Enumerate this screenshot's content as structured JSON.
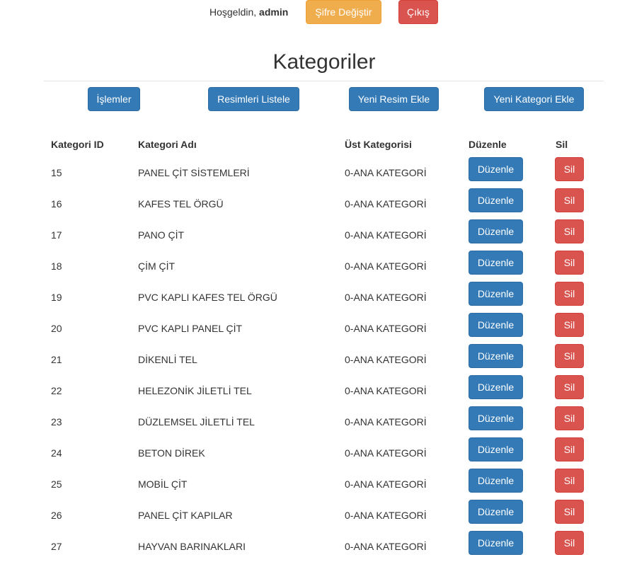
{
  "header": {
    "welcome_text": "Hoşgeldin,",
    "username": "admin",
    "change_password_label": "Şifre Değiştir",
    "logout_label": "Çıkış"
  },
  "page": {
    "title": "Kategoriler"
  },
  "actions": {
    "operations_label": "İşlemler",
    "list_images_label": "Resimleri Listele",
    "add_image_label": "Yeni Resim Ekle",
    "add_category_label": "Yeni Kategori Ekle"
  },
  "table": {
    "headers": {
      "id": "Kategori ID",
      "name": "Kategori Adı",
      "parent": "Üst Kategorisi",
      "edit": "Düzenle",
      "delete": "Sil"
    },
    "edit_label": "Düzenle",
    "delete_label": "Sil",
    "rows": [
      {
        "id": "15",
        "name": "PANEL ÇİT SİSTEMLERİ",
        "parent": "0-ANA KATEGORİ"
      },
      {
        "id": "16",
        "name": "KAFES TEL ÖRGÜ",
        "parent": "0-ANA KATEGORİ"
      },
      {
        "id": "17",
        "name": "PANO ÇİT",
        "parent": "0-ANA KATEGORİ"
      },
      {
        "id": "18",
        "name": "ÇİM ÇİT",
        "parent": "0-ANA KATEGORİ"
      },
      {
        "id": "19",
        "name": "PVC KAPLI KAFES TEL ÖRGÜ",
        "parent": "0-ANA KATEGORİ"
      },
      {
        "id": "20",
        "name": "PVC KAPLI PANEL ÇİT",
        "parent": "0-ANA KATEGORİ"
      },
      {
        "id": "21",
        "name": "DİKENLİ TEL",
        "parent": "0-ANA KATEGORİ"
      },
      {
        "id": "22",
        "name": "HELEZONİK JİLETLİ TEL",
        "parent": "0-ANA KATEGORİ"
      },
      {
        "id": "23",
        "name": "DÜZLEMSEL JİLETLİ TEL",
        "parent": "0-ANA KATEGORİ"
      },
      {
        "id": "24",
        "name": "BETON DİREK",
        "parent": "0-ANA KATEGORİ"
      },
      {
        "id": "25",
        "name": "MOBİL ÇİT",
        "parent": "0-ANA KATEGORİ"
      },
      {
        "id": "26",
        "name": "PANEL ÇİT KAPILAR",
        "parent": "0-ANA KATEGORİ"
      },
      {
        "id": "27",
        "name": "HAYVAN BARINAKLARI",
        "parent": "0-ANA KATEGORİ"
      }
    ]
  }
}
